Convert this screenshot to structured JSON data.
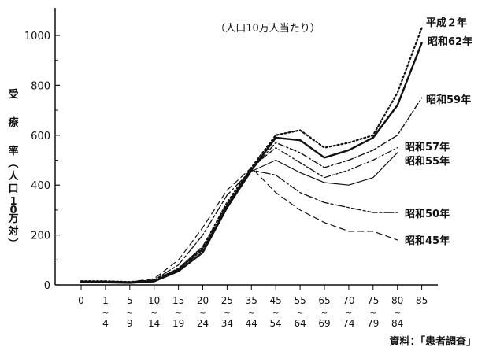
{
  "chart_data": {
    "type": "line",
    "title": "",
    "subtitle": "（人口10万人当たり）",
    "ylabel": "受療率（人口10万対）",
    "xlabel": "",
    "ylim": [
      0,
      1050
    ],
    "yticks": [
      0,
      200,
      400,
      600,
      800,
      1000
    ],
    "categories": [
      {
        "top": "0",
        "bottom": ""
      },
      {
        "top": "1",
        "bottom": "4"
      },
      {
        "top": "5",
        "bottom": "9"
      },
      {
        "top": "10",
        "bottom": "14"
      },
      {
        "top": "15",
        "bottom": "19"
      },
      {
        "top": "20",
        "bottom": "24"
      },
      {
        "top": "25",
        "bottom": "34"
      },
      {
        "top": "35",
        "bottom": "44"
      },
      {
        "top": "45",
        "bottom": "54"
      },
      {
        "top": "55",
        "bottom": "64"
      },
      {
        "top": "65",
        "bottom": "69"
      },
      {
        "top": "70",
        "bottom": "74"
      },
      {
        "top": "75",
        "bottom": "79"
      },
      {
        "top": "80",
        "bottom": "84"
      },
      {
        "top": "85",
        "bottom": ""
      }
    ],
    "range_mark": "~",
    "series": [
      {
        "name": "平成２年",
        "dash": "dotted",
        "values": [
          15,
          15,
          12,
          18,
          65,
          150,
          330,
          470,
          600,
          620,
          550,
          570,
          600,
          770,
          1030
        ]
      },
      {
        "name": "昭和62年",
        "dash": "solid-bold",
        "values": [
          10,
          10,
          8,
          14,
          55,
          130,
          310,
          460,
          590,
          580,
          510,
          540,
          590,
          720,
          970
        ]
      },
      {
        "name": "昭和59年",
        "dash": "dashdot",
        "values": [
          10,
          10,
          9,
          16,
          60,
          140,
          320,
          460,
          570,
          530,
          470,
          500,
          540,
          600,
          750
        ]
      },
      {
        "name": "昭和57年",
        "dash": "dashdotdot",
        "values": [
          12,
          12,
          10,
          17,
          65,
          155,
          320,
          470,
          550,
          490,
          430,
          460,
          500,
          550,
          ""
        ]
      },
      {
        "name": "昭和55年",
        "dash": "solid-thin",
        "values": [
          10,
          10,
          9,
          16,
          60,
          145,
          310,
          455,
          500,
          450,
          410,
          400,
          430,
          530,
          ""
        ]
      },
      {
        "name": "昭和50年",
        "dash": "longdashdot",
        "values": [
          15,
          15,
          12,
          20,
          80,
          200,
          360,
          460,
          440,
          370,
          330,
          310,
          290,
          290,
          ""
        ]
      },
      {
        "name": "昭和45年",
        "dash": "dashed",
        "values": [
          15,
          15,
          12,
          25,
          100,
          230,
          380,
          470,
          370,
          300,
          250,
          215,
          215,
          180,
          ""
        ]
      }
    ]
  },
  "source": "資料：「患者調査」"
}
